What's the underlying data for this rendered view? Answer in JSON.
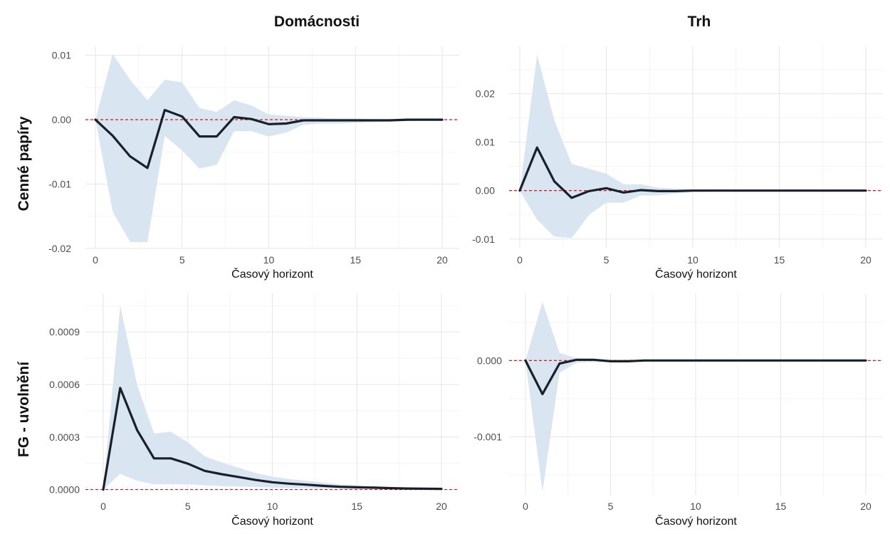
{
  "column_titles": [
    "Domácnosti",
    "Trh"
  ],
  "row_titles": [
    "Cenné papíry",
    "FG - uvolnění"
  ],
  "chart_data": [
    {
      "type": "line",
      "row": "Cenné papíry",
      "column": "Domácnosti",
      "xlabel": "Časový horizont",
      "xlim": [
        0,
        20
      ],
      "ylim": [
        -0.02,
        0.01
      ],
      "xticks": [
        0,
        5,
        10,
        15,
        20
      ],
      "yticks": [
        -0.02,
        -0.01,
        0.0,
        0.01
      ],
      "ytick_labels": [
        "-0.02",
        "-0.01",
        "0.00",
        "0.01"
      ],
      "x": [
        0,
        1,
        2,
        3,
        4,
        5,
        6,
        7,
        8,
        9,
        10,
        11,
        12,
        13,
        14,
        15,
        16,
        17,
        18,
        19,
        20
      ],
      "series": [
        {
          "values": [
            0,
            -0.0025,
            -0.0057,
            -0.0075,
            0.0015,
            0.0005,
            -0.0026,
            -0.0026,
            0.0004,
            0.0001,
            -0.0007,
            -0.0006,
            -0.0001,
            -0.0001,
            -0.0001,
            -0.0001,
            -0.0001,
            -0.0001,
            0.0,
            0.0,
            0.0
          ]
        }
      ],
      "band_upper": [
        0,
        0.0102,
        0.0062,
        0.003,
        0.0062,
        0.0058,
        0.0018,
        0.0012,
        0.003,
        0.0022,
        0.0008,
        0.0006,
        0.0004,
        0.0003,
        0.0002,
        0.0002,
        0.0001,
        0.0001,
        0.0001,
        0.0001,
        0.0001
      ],
      "band_lower": [
        0,
        -0.0143,
        -0.019,
        -0.019,
        -0.0025,
        -0.0048,
        -0.0076,
        -0.007,
        -0.0018,
        -0.0018,
        -0.0026,
        -0.002,
        -0.0008,
        -0.0006,
        -0.0006,
        -0.0005,
        -0.0004,
        -0.0003,
        -0.0002,
        -0.0001,
        -0.0001
      ],
      "reference_line": 0,
      "colors": {
        "line": "#18202b",
        "band": "#d9e5f0",
        "reference": "#cc0000"
      }
    },
    {
      "type": "line",
      "row": "Cenné papíry",
      "column": "Trh",
      "xlabel": "Časový horizont",
      "xlim": [
        0,
        20
      ],
      "ylim": [
        -0.01,
        0.025
      ],
      "xticks": [
        0,
        5,
        10,
        15,
        20
      ],
      "yticks": [
        -0.01,
        0.0,
        0.01,
        0.02
      ],
      "ytick_labels": [
        "-0.01",
        "0.00",
        "0.01",
        "0.02"
      ],
      "x": [
        0,
        1,
        2,
        3,
        4,
        5,
        6,
        7,
        8,
        9,
        10,
        11,
        12,
        13,
        14,
        15,
        16,
        17,
        18,
        19,
        20
      ],
      "series": [
        {
          "values": [
            0,
            0.0089,
            0.0019,
            -0.0015,
            -0.0001,
            0.0005,
            -0.0004,
            0.0001,
            -0.0001,
            -0.0001,
            0.0,
            0.0,
            0.0,
            0.0,
            0.0,
            0.0,
            0.0,
            0.0,
            0.0,
            0.0,
            0.0
          ]
        }
      ],
      "band_upper": [
        0,
        0.028,
        0.0145,
        0.0055,
        0.0045,
        0.0035,
        0.0013,
        0.0013,
        0.0006,
        0.0004,
        0.0002,
        0.0001,
        0.0001,
        0.0001,
        0.0001,
        0.0,
        0.0,
        0.0,
        0.0,
        0.0,
        0.0
      ],
      "band_lower": [
        0,
        -0.006,
        -0.0095,
        -0.0098,
        -0.005,
        -0.0025,
        -0.0025,
        -0.001,
        -0.001,
        -0.0006,
        -0.0003,
        -0.0002,
        -0.0001,
        -0.0001,
        -0.0001,
        0.0,
        0.0,
        0.0,
        0.0,
        0.0,
        0.0
      ],
      "reference_line": 0,
      "colors": {
        "line": "#18202b",
        "band": "#d9e5f0",
        "reference": "#cc0000"
      }
    },
    {
      "type": "line",
      "row": "FG - uvolnění",
      "column": "Domácnosti",
      "xlabel": "Časový horizont",
      "xlim": [
        0,
        20
      ],
      "ylim": [
        0.0,
        0.00105
      ],
      "xticks": [
        0,
        5,
        10,
        15,
        20
      ],
      "yticks": [
        0.0,
        0.0003,
        0.0006,
        0.0009
      ],
      "ytick_labels": [
        "0.0000",
        "0.0003",
        "0.0006",
        "0.0009"
      ],
      "x": [
        0,
        1,
        2,
        3,
        4,
        5,
        6,
        7,
        8,
        9,
        10,
        11,
        12,
        13,
        14,
        15,
        16,
        17,
        18,
        19,
        20
      ],
      "series": [
        {
          "values": [
            0,
            0.00058,
            0.00034,
            0.000178,
            0.000178,
            0.000148,
            0.000107,
            8.8e-05,
            7.2e-05,
            5.5e-05,
            4.2e-05,
            3.4e-05,
            2.8e-05,
            2.1e-05,
            1.6e-05,
            1.3e-05,
            1.1e-05,
            8e-06,
            6e-06,
            5e-06,
            4e-06
          ]
        }
      ],
      "band_upper": [
        0,
        0.00105,
        0.0006,
        0.00032,
        0.00033,
        0.00027,
        0.00019,
        0.000155,
        0.000125,
        9.5e-05,
        7.5e-05,
        6e-05,
        5e-05,
        4e-05,
        3e-05,
        2.5e-05,
        2e-05,
        1.5e-05,
        1.2e-05,
        1e-05,
        8e-06
      ],
      "band_lower": [
        0,
        9e-05,
        5e-05,
        3e-05,
        3e-05,
        3e-05,
        2.5e-05,
        2e-05,
        1.8e-05,
        1.5e-05,
        1.2e-05,
        1e-05,
        8e-06,
        6e-06,
        5e-06,
        4e-06,
        3e-06,
        2e-06,
        2e-06,
        1e-06,
        1e-06
      ],
      "reference_line": 0,
      "colors": {
        "line": "#18202b",
        "band": "#d9e5f0",
        "reference": "#cc0000"
      }
    },
    {
      "type": "line",
      "row": "FG - uvolnění",
      "column": "Trh",
      "xlabel": "Časový horizont",
      "xlim": [
        0,
        20
      ],
      "ylim": [
        -0.0017,
        0.0008
      ],
      "xticks": [
        0,
        5,
        10,
        15,
        20
      ],
      "yticks": [
        -0.001,
        0.0
      ],
      "ytick_labels": [
        "-0.001",
        "0.000"
      ],
      "x": [
        0,
        1,
        2,
        3,
        4,
        5,
        6,
        7,
        8,
        9,
        10,
        11,
        12,
        13,
        14,
        15,
        16,
        17,
        18,
        19,
        20
      ],
      "series": [
        {
          "values": [
            0,
            -0.00044,
            -4e-05,
            1e-05,
            1e-05,
            -1e-05,
            -1e-05,
            0.0,
            0.0,
            0.0,
            0.0,
            0.0,
            0.0,
            0.0,
            0.0,
            0.0,
            0.0,
            0.0,
            0.0,
            0.0,
            0.0
          ]
        }
      ],
      "band_upper": [
        0,
        0.00077,
        0.0001,
        3e-05,
        2e-05,
        1e-05,
        1e-05,
        0.0,
        0.0,
        0.0,
        0.0,
        0.0,
        0.0,
        0.0,
        0.0,
        0.0,
        0.0,
        0.0,
        0.0,
        0.0,
        0.0
      ],
      "band_lower": [
        0,
        -0.00172,
        -0.00016,
        -3e-05,
        -2e-05,
        -1e-05,
        -1e-05,
        0.0,
        0.0,
        0.0,
        0.0,
        0.0,
        0.0,
        0.0,
        0.0,
        0.0,
        0.0,
        0.0,
        0.0,
        0.0,
        0.0
      ],
      "reference_line": 0,
      "colors": {
        "line": "#18202b",
        "band": "#d9e5f0",
        "reference": "#cc0000"
      }
    }
  ]
}
